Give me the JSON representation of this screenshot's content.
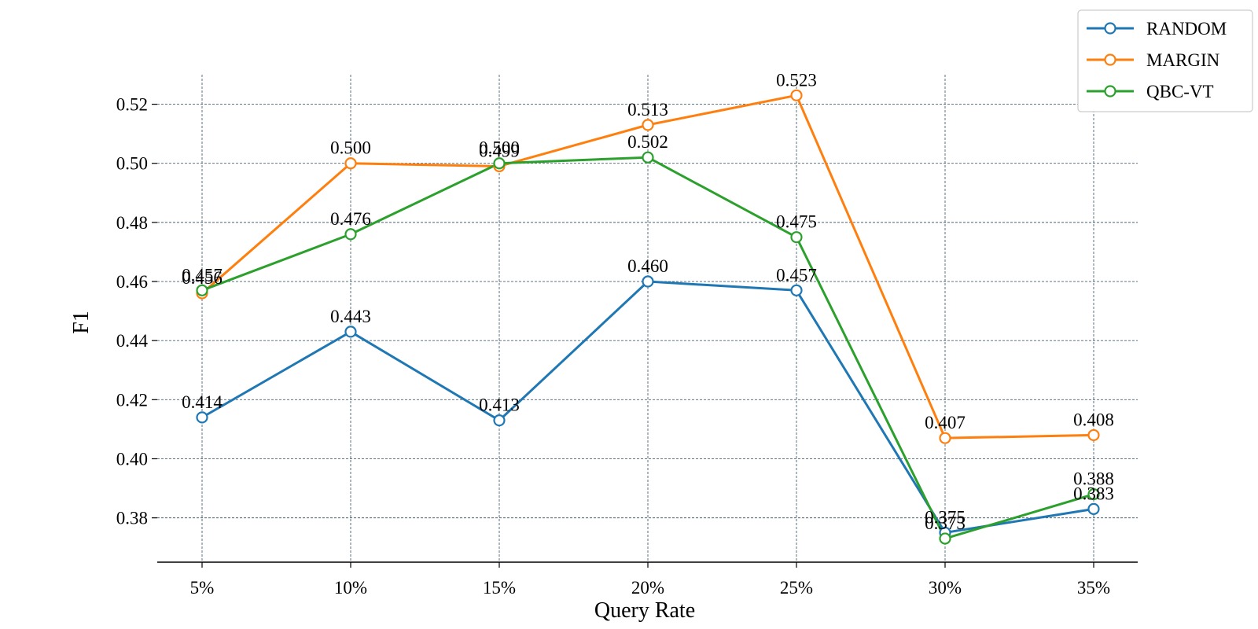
{
  "chart_data": {
    "type": "line",
    "categories": [
      "5%",
      "10%",
      "15%",
      "20%",
      "25%",
      "30%",
      "35%"
    ],
    "xlabel": "Query Rate",
    "ylabel": "F1",
    "ylim": [
      0.365,
      0.53
    ],
    "yticks": [
      "0.38",
      "0.40",
      "0.42",
      "0.44",
      "0.46",
      "0.48",
      "0.50",
      "0.52"
    ],
    "grid": true,
    "legend_position": "top-right",
    "series": [
      {
        "name": "RANDOM",
        "color": "#1f77b4",
        "values": [
          0.414,
          0.443,
          0.413,
          0.46,
          0.457,
          0.375,
          0.383
        ],
        "labels": [
          "0.414",
          "0.443",
          "0.413",
          "0.460",
          "0.457",
          "0.375",
          "0.383"
        ]
      },
      {
        "name": "MARGIN",
        "color": "#ff7f0e",
        "values": [
          0.456,
          0.5,
          0.499,
          0.513,
          0.523,
          0.407,
          0.408
        ],
        "labels": [
          "0.456",
          "0.500",
          "0.499",
          "0.513",
          "0.523",
          "0.407",
          "0.408"
        ]
      },
      {
        "name": "QBC-VT",
        "color": "#2ca02c",
        "values": [
          0.457,
          0.476,
          0.5,
          0.502,
          0.475,
          0.373,
          0.388
        ],
        "labels": [
          "0.457",
          "0.476",
          "0.500",
          "0.502",
          "0.475",
          "0.373",
          "0.388"
        ]
      }
    ]
  }
}
